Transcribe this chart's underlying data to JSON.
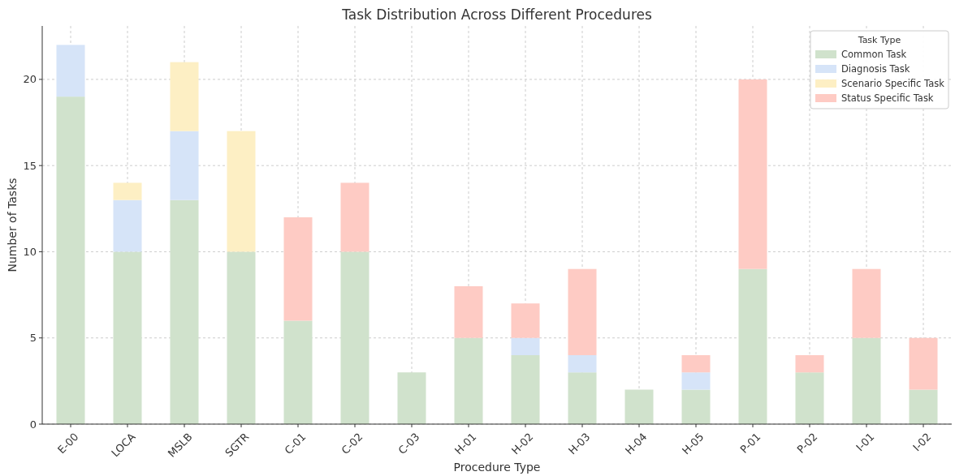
{
  "chart_data": {
    "type": "bar",
    "title": "Task Distribution Across Different Procedures",
    "xlabel": "Procedure Type",
    "ylabel": "Number of Tasks",
    "legend_title": "Task Type",
    "categories": [
      "E-00",
      "LOCA",
      "MSLB",
      "SGTR",
      "C-01",
      "C-02",
      "C-03",
      "H-01",
      "H-02",
      "H-03",
      "H-04",
      "H-05",
      "P-01",
      "P-02",
      "I-01",
      "I-02"
    ],
    "stacked": true,
    "series": [
      {
        "name": "Common Task",
        "color": "#d0e2cc",
        "values": [
          19,
          10,
          13,
          10,
          6,
          10,
          3,
          5,
          4,
          3,
          2,
          2,
          9,
          3,
          5,
          2
        ]
      },
      {
        "name": "Diagnosis Task",
        "color": "#d6e4f8",
        "values": [
          3,
          3,
          4,
          0,
          0,
          0,
          0,
          0,
          1,
          1,
          0,
          1,
          0,
          0,
          0,
          0
        ]
      },
      {
        "name": "Scenario Specific Task",
        "color": "#fdefc4",
        "values": [
          0,
          1,
          4,
          7,
          0,
          0,
          0,
          0,
          0,
          0,
          0,
          0,
          0,
          0,
          0,
          0
        ]
      },
      {
        "name": "Status Specific Task",
        "color": "#fecbc4",
        "values": [
          0,
          0,
          0,
          0,
          6,
          4,
          0,
          3,
          2,
          5,
          0,
          1,
          11,
          1,
          4,
          3
        ]
      }
    ],
    "ylim": [
      0,
      23.1
    ],
    "yticks": [
      0,
      5,
      10,
      15,
      20
    ],
    "grid": true,
    "legend": "top right"
  }
}
